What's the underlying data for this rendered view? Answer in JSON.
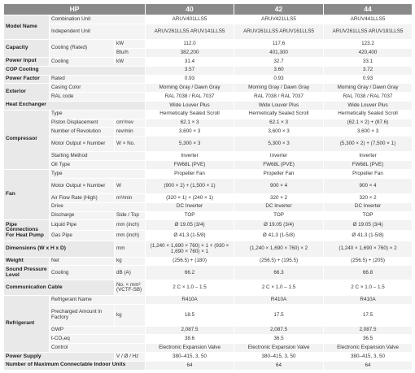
{
  "header": {
    "hp": "HP",
    "models": [
      "40",
      "42",
      "44"
    ]
  },
  "groups": {
    "model_name": "Model Name",
    "capacity": "Capacity",
    "power_input": "Power Input",
    "cop": "COP Cooling",
    "power_factor": "Power Factor",
    "exterior": "Exterior",
    "heat_exchanger": "Heat Exchanger",
    "compressor": "Compressor",
    "fan": "Fan",
    "pipe": "Pipe Connections For Heat Pump",
    "dimensions": "Dimensions (W x H x D)",
    "weight": "Weight",
    "sound": "Sound Pressure Level",
    "comm": "Communication Cable",
    "refrigerant": "Refrigerant",
    "power_supply": "Power Supply",
    "max_units": "Number of Maximum Connectable Indoor Units"
  },
  "rows": {
    "comb": {
      "label": "Combination Unit",
      "unit": "",
      "v": [
        "ARUV401LLS5",
        "ARUV421LLS5",
        "ARUV441LLS5"
      ]
    },
    "indep": {
      "label": "Independent Unit",
      "unit": "",
      "v": [
        "ARUV261LLS5 ARUV141LLS5",
        "ARUV261LLS5 ARUV161LLS5",
        "ARUV261LLS5 ARUV181LLS5"
      ]
    },
    "cap_kw": {
      "label": "Cooling (Rated)",
      "unit": "kW",
      "v": [
        "112.0",
        "117.6",
        "123.2"
      ]
    },
    "cap_btu": {
      "unit": "Btu/h",
      "v": [
        "382,200",
        "401,300",
        "420,400"
      ]
    },
    "pin": {
      "label": "Cooling",
      "unit": "kW",
      "v": [
        "31.4",
        "32.7",
        "33.1"
      ]
    },
    "cop": {
      "v": [
        "3.57",
        "3.60",
        "3.72"
      ]
    },
    "pf": {
      "label": "Rated",
      "v": [
        "0.93",
        "0.93",
        "0.93"
      ]
    },
    "casing": {
      "label": "Casing Color",
      "v": [
        "Morning Gray / Dawn Gray",
        "Morning Gray / Dawn Gray",
        "Morning Gray / Dawn Gray"
      ]
    },
    "ral": {
      "label": "RAL code",
      "v": [
        "RAL 7038 / RAL 7037",
        "RAL 7038 / RAL 7037",
        "RAL 7038 / RAL 7037"
      ]
    },
    "hx": {
      "v": [
        "Wide Louver Plus",
        "Wide Louver Plus",
        "Wide Louver Plus"
      ]
    },
    "c_type": {
      "label": "Type",
      "v": [
        "Hermetically Sealed Scroll",
        "Hermetically Sealed Scroll",
        "Hermetically Sealed Scroll"
      ]
    },
    "c_disp": {
      "label": "Piston Displacement",
      "unit": "cm³/rev",
      "v": [
        "62.1 × 3",
        "62.1 × 3",
        "(62.1 × 2) + (87.6)"
      ]
    },
    "c_rev": {
      "label": "Number of Revolution",
      "unit": "rev/min",
      "v": [
        "3,600 × 3",
        "3,600 × 3",
        "3,600 × 3"
      ]
    },
    "c_motor": {
      "label": "Motor Output × Number",
      "unit": "W × No.",
      "v": [
        "5,300 × 3",
        "5,300 × 3",
        "(5,300 × 2) + (7,500 × 1)"
      ]
    },
    "c_start": {
      "label": "Starting Method",
      "v": [
        "Inverter",
        "Inverter",
        "Inverter"
      ]
    },
    "c_oil": {
      "label": "Oil Type",
      "v": [
        "FW68L (PVE)",
        "FW68L (PVE)",
        "FW68L (PVE)"
      ]
    },
    "f_type": {
      "label": "Type",
      "v": [
        "Propeller Fan",
        "Propeller Fan",
        "Propeller Fan"
      ]
    },
    "f_motor": {
      "label": "Motor Output × Number",
      "unit": "W",
      "v": [
        "(900 × 2) + (1,500 × 1)",
        "900 × 4",
        "900 × 4"
      ]
    },
    "f_air": {
      "label": "Air Flow Rate (High)",
      "unit": "m³/min",
      "v": [
        "(320 × 1) + (240 × 1)",
        "320 × 2",
        "320 × 2"
      ]
    },
    "f_drive": {
      "label": "Drive",
      "v": [
        "DC Inverter",
        "DC Inverter",
        "DC Inverter"
      ]
    },
    "f_disc": {
      "label": "Discharge",
      "unit": "Side / Top",
      "v": [
        "TOP",
        "TOP",
        "TOP"
      ]
    },
    "p_liq": {
      "label": "Liquid Pipe",
      "unit": "mm (inch)",
      "v": [
        "Ø 19.05 (3/4)",
        "Ø 19.05 (3/4)",
        "Ø 19.05 (3/4)"
      ]
    },
    "p_gas": {
      "label": "Gas Pipe",
      "unit": "mm (inch)",
      "v": [
        "Ø 41.3 (1-5/8)",
        "Ø 41.3 (1-5/8)",
        "Ø 41.3 (1-5/8)"
      ]
    },
    "dim": {
      "unit": "mm",
      "v": [
        "(1,240 × 1,690 × 760) × 1 + (930 × 1,690 × 760) × 1",
        "(1,240 × 1,690 × 760) × 2",
        "(1,240 × 1,690 × 760) × 2"
      ]
    },
    "weight": {
      "label": "Net",
      "unit": "kg",
      "v": [
        "(256.5) + (180)",
        "(256.5) + (195.5)",
        "(256.5) + (205)"
      ]
    },
    "sound": {
      "label": "Cooling",
      "unit": "dB (A)",
      "v": [
        "66.2",
        "66.3",
        "66.8"
      ]
    },
    "comm": {
      "unit": "No. × mm² (VCTF-SB)",
      "v": [
        "2 C × 1.0 – 1.5",
        "2 C × 1.0 – 1.5",
        "2 C × 1.0 – 1.5"
      ]
    },
    "r_name": {
      "label": "Refrigerant Name",
      "v": [
        "R410A",
        "R410A",
        "R410A"
      ]
    },
    "r_amt": {
      "label": "Precharged Amount in Factory",
      "unit": "kg",
      "v": [
        "18.5",
        "17.5",
        "17.5"
      ]
    },
    "r_gwp": {
      "label": "GWP",
      "v": [
        "2,087.5",
        "2,087.5",
        "2,087.5"
      ]
    },
    "r_co2": {
      "label": "t-CO₂eq",
      "v": [
        "38.6",
        "36.5",
        "36.5"
      ]
    },
    "r_ctrl": {
      "label": "Control",
      "v": [
        "Electronic Expansion Valve",
        "Electronic Expansion Valve",
        "Electronic Expansion Valve"
      ]
    },
    "psu": {
      "unit": "V / Ø / Hz",
      "v": [
        "380–415, 3, 50",
        "380–415, 3, 50",
        "380–415, 3, 50"
      ]
    },
    "maxu": {
      "v": [
        "64",
        "64",
        "64"
      ]
    }
  }
}
